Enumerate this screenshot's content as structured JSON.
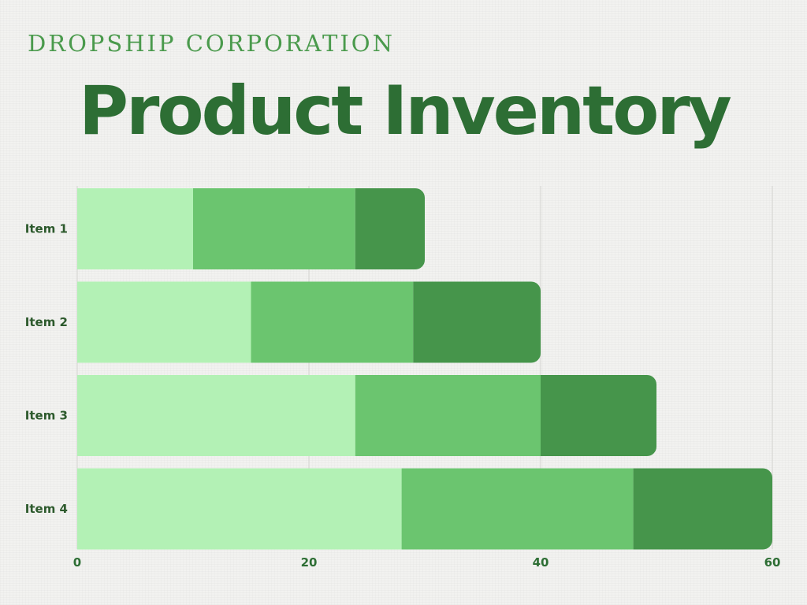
{
  "header": {
    "company": "DROPSHIP CORPORATION",
    "title": "Product Inventory"
  },
  "chart_data": {
    "type": "bar",
    "orientation": "horizontal",
    "stacked": true,
    "categories": [
      "Item 1",
      "Item 2",
      "Item 3",
      "Item 4"
    ],
    "series": [
      {
        "values": [
          10,
          15,
          24,
          28
        ],
        "color": "#b3f1b5"
      },
      {
        "values": [
          14,
          14,
          16,
          20
        ],
        "color": "#6bc56f"
      },
      {
        "values": [
          6,
          11,
          10,
          12
        ],
        "color": "#46954b"
      }
    ],
    "xlim": [
      0,
      60
    ],
    "xticks": [
      0,
      20,
      40,
      60
    ],
    "grid": true,
    "legend": "none"
  }
}
